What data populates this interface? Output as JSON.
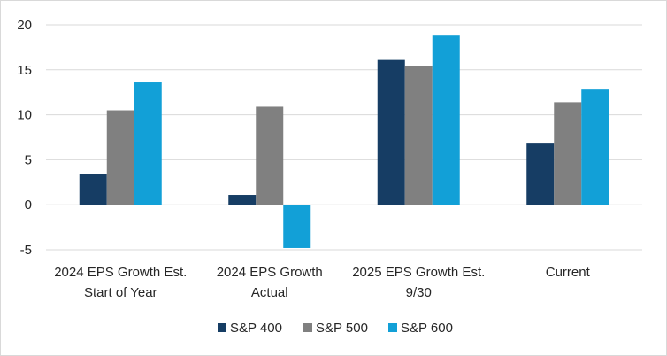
{
  "chart_data": {
    "type": "bar",
    "title": "",
    "xlabel": "",
    "ylabel": "",
    "ylim": [
      -5,
      20
    ],
    "yticks": [
      -5,
      0,
      5,
      10,
      15,
      20
    ],
    "grid": "horizontal",
    "legend_position": "bottom",
    "categories": [
      [
        "2024 EPS Growth Est.",
        "Start of Year"
      ],
      [
        "2024 EPS Growth",
        "Actual"
      ],
      [
        "2025 EPS Growth Est.",
        "9/30"
      ],
      [
        "Current"
      ]
    ],
    "series": [
      {
        "name": "S&P 400",
        "color": "#163D64",
        "values": [
          3.4,
          1.1,
          16.1,
          6.8
        ]
      },
      {
        "name": "S&P 500",
        "color": "#808080",
        "values": [
          10.5,
          10.9,
          15.4,
          11.4
        ]
      },
      {
        "name": "S&P 600",
        "color": "#12A0D7",
        "values": [
          13.6,
          -4.8,
          18.8,
          12.8
        ]
      }
    ]
  }
}
